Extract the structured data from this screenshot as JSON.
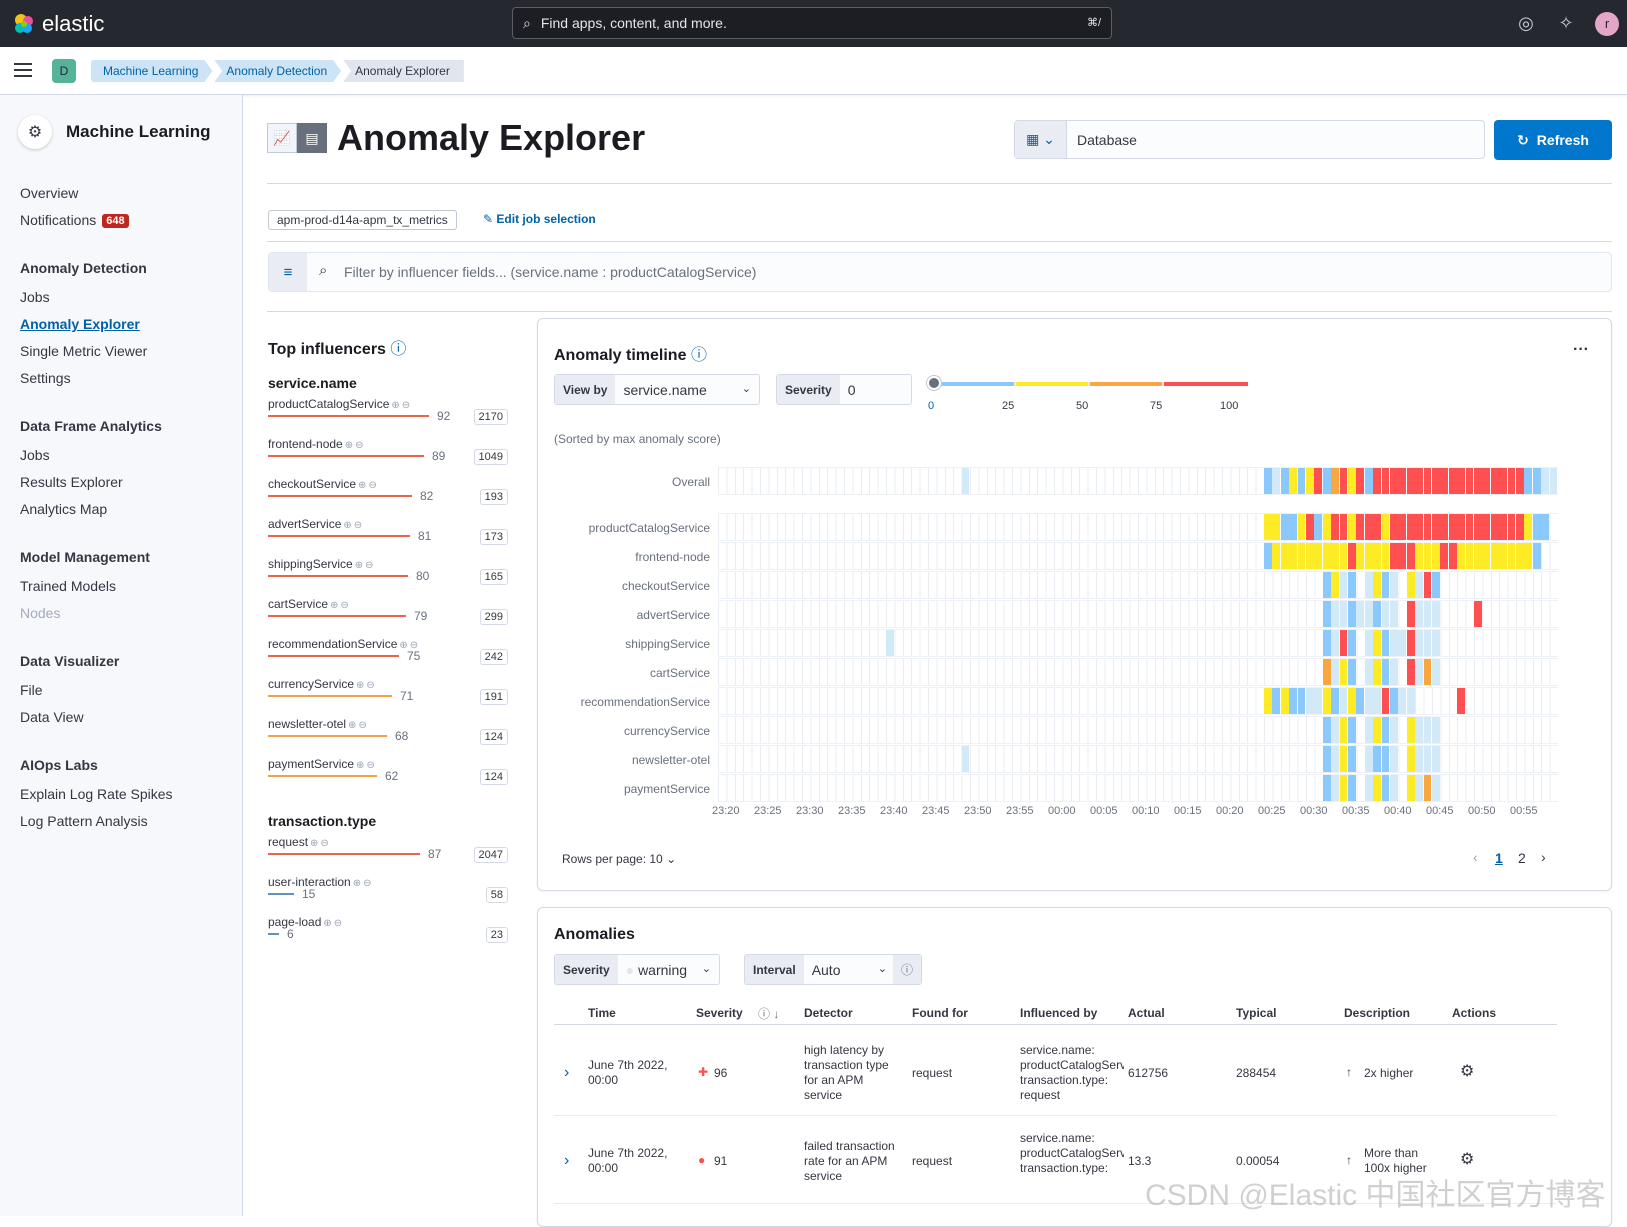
{
  "topbar": {
    "logo_text": "elastic",
    "search_placeholder": "Find apps, content, and more.",
    "search_shortcut": "⌘/",
    "avatar_letter": "r",
    "space_letter": "D"
  },
  "breadcrumbs": [
    "Machine Learning",
    "Anomaly Detection",
    "Anomaly Explorer"
  ],
  "sidebar": {
    "title": "Machine Learning",
    "overview": "Overview",
    "notifications": "Notifications",
    "notifications_count": "648",
    "anomaly_detection": "Anomaly Detection",
    "ad_jobs": "Jobs",
    "ad_explorer": "Anomaly Explorer",
    "ad_single": "Single Metric Viewer",
    "ad_settings": "Settings",
    "dfa": "Data Frame Analytics",
    "dfa_jobs": "Jobs",
    "dfa_results": "Results Explorer",
    "dfa_map": "Analytics Map",
    "model_mgmt": "Model Management",
    "trained_models": "Trained Models",
    "nodes": "Nodes",
    "data_vis": "Data Visualizer",
    "file": "File",
    "data_view": "Data View",
    "aiops": "AIOps Labs",
    "explain_log": "Explain Log Rate Spikes",
    "log_pattern": "Log Pattern Analysis"
  },
  "page": {
    "title": "Anomaly Explorer",
    "date_value": "Database",
    "refresh_label": "Refresh",
    "job_badge": "apm-prod-d14a-apm_tx_metrics",
    "edit_job": "Edit job selection",
    "filter_placeholder": "Filter by influencer fields... (service.name : productCatalogService)"
  },
  "influencers": {
    "title": "Top influencers",
    "groups": [
      {
        "field": "service.name",
        "items": [
          {
            "name": "productCatalogService",
            "score": 92,
            "count": "2170",
            "color": "#e7664c"
          },
          {
            "name": "frontend-node",
            "score": 89,
            "count": "1049",
            "color": "#e7664c"
          },
          {
            "name": "checkoutService",
            "score": 82,
            "count": "193",
            "color": "#e7664c"
          },
          {
            "name": "advertService",
            "score": 81,
            "count": "173",
            "color": "#e7664c"
          },
          {
            "name": "shippingService",
            "score": 80,
            "count": "165",
            "color": "#e7664c"
          },
          {
            "name": "cartService",
            "score": 79,
            "count": "299",
            "color": "#e7664c"
          },
          {
            "name": "recommendationService",
            "score": 75,
            "count": "242",
            "color": "#e7664c"
          },
          {
            "name": "currencyService",
            "score": 71,
            "count": "191",
            "color": "#f0a34b"
          },
          {
            "name": "newsletter-otel",
            "score": 68,
            "count": "124",
            "color": "#f0a34b"
          },
          {
            "name": "paymentService",
            "score": 62,
            "count": "124",
            "color": "#f0a34b"
          }
        ]
      },
      {
        "field": "transaction.type",
        "items": [
          {
            "name": "request",
            "score": 87,
            "count": "2047",
            "color": "#e7664c"
          },
          {
            "name": "user-interaction",
            "score": 15,
            "count": "58",
            "color": "#6092c0"
          },
          {
            "name": "page-load",
            "score": 6,
            "count": "23",
            "color": "#6092c0"
          }
        ]
      }
    ]
  },
  "timeline": {
    "title": "Anomaly timeline",
    "view_by_label": "View by",
    "view_by_value": "service.name",
    "severity_label": "Severity",
    "severity_value": "0",
    "scale_ticks": [
      "0",
      "25",
      "50",
      "75",
      "100"
    ],
    "sorted_note": "(Sorted by max anomaly score)",
    "overall_label": "Overall",
    "rows": [
      "productCatalogService",
      "frontend-node",
      "checkoutService",
      "advertService",
      "shippingService",
      "cartService",
      "recommendationService",
      "currencyService",
      "newsletter-otel",
      "paymentService"
    ],
    "x_ticks": [
      "23:20",
      "23:25",
      "23:30",
      "23:35",
      "23:40",
      "23:45",
      "23:50",
      "23:55",
      "00:00",
      "00:05",
      "00:10",
      "00:15",
      "00:20",
      "00:25",
      "00:30",
      "00:35",
      "00:40",
      "00:45",
      "00:50",
      "00:55"
    ],
    "rows_per_page": "Rows per page: 10",
    "pages": [
      "1",
      "2"
    ],
    "colors": {
      "low": "#d2e9f7",
      "minor": "#8bc8fb",
      "warning": "#fdec25",
      "major": "#fba740",
      "critical": "#fe5050"
    }
  },
  "anomalies": {
    "title": "Anomalies",
    "severity_label": "Severity",
    "severity_value": "warning",
    "interval_label": "Interval",
    "interval_value": "Auto",
    "headers": [
      "Time",
      "Severity",
      "Detector",
      "Found for",
      "Influenced by",
      "Actual",
      "Typical",
      "Description",
      "Actions"
    ],
    "rows": [
      {
        "time": "June 7th 2022, 00:00",
        "severity": "96",
        "detector": "high latency by transaction type for an APM service",
        "found_for": "request",
        "influenced": "service.name: productCatalogService transaction.type: request",
        "actual": "612756",
        "typical": "288454",
        "description": "2x higher"
      },
      {
        "time": "June 7th 2022, 00:00",
        "severity": "91",
        "detector": "failed transaction rate for an APM service",
        "found_for": "request",
        "influenced": "service.name: productCatalogService transaction.type:",
        "actual": "13.3",
        "typical": "0.00054",
        "description": "More than 100x higher"
      }
    ]
  },
  "watermark": "CSDN @Elastic 中国社区官方博客"
}
